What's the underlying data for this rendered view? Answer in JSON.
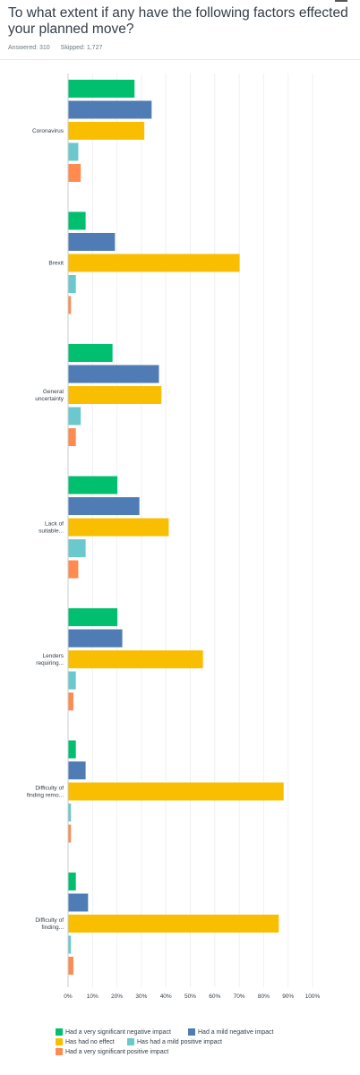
{
  "question": {
    "title": "To what extent if any have the following factors effected your planned move?",
    "answered": "Answered: 310",
    "skipped": "Skipped: 1,727"
  },
  "chart_data": {
    "type": "bar",
    "orientation": "horizontal",
    "categories": [
      [
        "Coronavirus"
      ],
      [
        "Brexit"
      ],
      [
        "General",
        "uncertainty"
      ],
      [
        "Lack of",
        "suitable..."
      ],
      [
        "Lenders",
        "requiring..."
      ],
      [
        "Difficulty of",
        "finding remo..."
      ],
      [
        "Difficulty of",
        "finding..."
      ]
    ],
    "series": [
      {
        "name": "Had a very significant negative impact",
        "color": "#00bf6f",
        "values": [
          27,
          7,
          18,
          20,
          20,
          3,
          3
        ]
      },
      {
        "name": "Had a mild negative impact",
        "color": "#507cb6",
        "values": [
          34,
          19,
          37,
          29,
          22,
          7,
          8
        ]
      },
      {
        "name": "Has had no effect",
        "color": "#f9be00",
        "values": [
          31,
          70,
          38,
          41,
          55,
          88,
          86
        ]
      },
      {
        "name": "Has had a mild positive impact",
        "color": "#6bc8cd",
        "values": [
          4,
          3,
          5,
          7,
          3,
          1,
          1
        ]
      },
      {
        "name": "Had a very significant positive impact",
        "color": "#ff8b4f",
        "values": [
          5,
          1,
          3,
          4,
          2,
          1,
          2
        ]
      }
    ],
    "xlim": [
      0,
      100
    ],
    "xticks": [
      "0%",
      "10%",
      "20%",
      "30%",
      "40%",
      "50%",
      "60%",
      "70%",
      "80%",
      "90%",
      "100%"
    ],
    "legend_position": "bottom"
  }
}
